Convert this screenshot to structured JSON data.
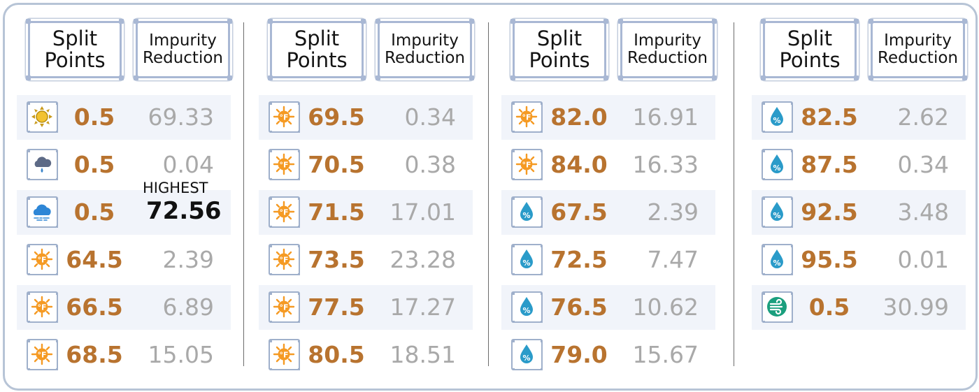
{
  "header": {
    "split_label": "Split Points",
    "impurity_label": "Impurity Reduction"
  },
  "highlight_label": "HIGHEST",
  "colors": {
    "split_value": "#b8732f",
    "impurity_value": "#a9a9a9",
    "border": "#a9b8d4",
    "row_shade": "#f1f4fa"
  },
  "panels": [
    {
      "rows": [
        {
          "icon": "sun-icon",
          "split": "0.5",
          "impurity": "69.33"
        },
        {
          "icon": "rain-cloud-icon",
          "split": "0.5",
          "impurity": "0.04"
        },
        {
          "icon": "cloud-icon",
          "split": "0.5",
          "impurity": "72.56",
          "highlight": true
        },
        {
          "icon": "temperature-icon",
          "split": "64.5",
          "impurity": "2.39"
        },
        {
          "icon": "temperature-icon",
          "split": "66.5",
          "impurity": "6.89"
        },
        {
          "icon": "temperature-icon",
          "split": "68.5",
          "impurity": "15.05"
        }
      ]
    },
    {
      "rows": [
        {
          "icon": "temperature-icon",
          "split": "69.5",
          "impurity": "0.34"
        },
        {
          "icon": "temperature-icon",
          "split": "70.5",
          "impurity": "0.38"
        },
        {
          "icon": "temperature-icon",
          "split": "71.5",
          "impurity": "17.01"
        },
        {
          "icon": "temperature-icon",
          "split": "73.5",
          "impurity": "23.28"
        },
        {
          "icon": "temperature-icon",
          "split": "77.5",
          "impurity": "17.27"
        },
        {
          "icon": "temperature-icon",
          "split": "80.5",
          "impurity": "18.51"
        }
      ]
    },
    {
      "rows": [
        {
          "icon": "temperature-icon",
          "split": "82.0",
          "impurity": "16.91"
        },
        {
          "icon": "temperature-icon",
          "split": "84.0",
          "impurity": "16.33"
        },
        {
          "icon": "humidity-icon",
          "split": "67.5",
          "impurity": "2.39"
        },
        {
          "icon": "humidity-icon",
          "split": "72.5",
          "impurity": "7.47"
        },
        {
          "icon": "humidity-icon",
          "split": "76.5",
          "impurity": "10.62"
        },
        {
          "icon": "humidity-icon",
          "split": "79.0",
          "impurity": "15.67"
        }
      ]
    },
    {
      "rows": [
        {
          "icon": "humidity-icon",
          "split": "82.5",
          "impurity": "2.62"
        },
        {
          "icon": "humidity-icon",
          "split": "87.5",
          "impurity": "0.34"
        },
        {
          "icon": "humidity-icon",
          "split": "92.5",
          "impurity": "3.48"
        },
        {
          "icon": "humidity-icon",
          "split": "95.5",
          "impurity": "0.01"
        },
        {
          "icon": "wind-icon",
          "split": "0.5",
          "impurity": "30.99"
        }
      ]
    }
  ]
}
